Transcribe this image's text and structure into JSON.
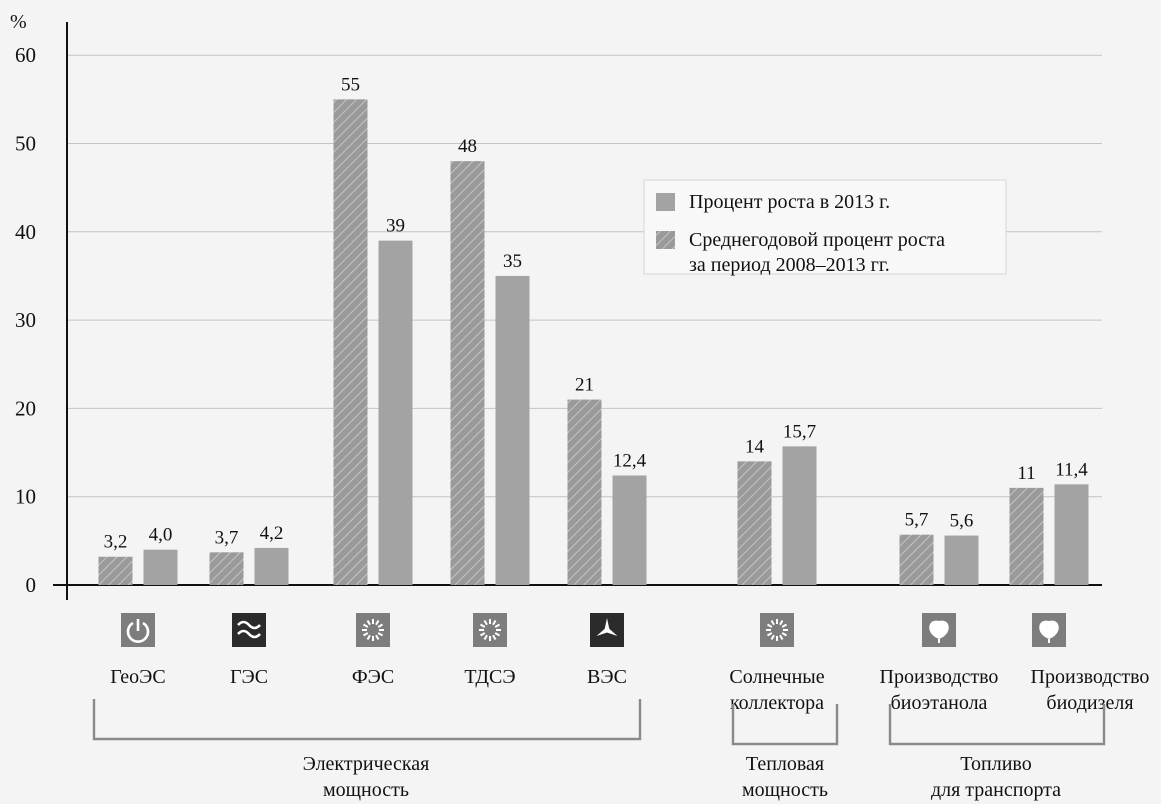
{
  "chart_data": {
    "type": "bar",
    "ylabel": "%",
    "ylim": [
      0,
      60
    ],
    "yticks": [
      "0",
      "10",
      "20",
      "30",
      "40",
      "50",
      "60"
    ],
    "categories": [
      "ГеоЭС",
      "ГЭС",
      "ФЭС",
      "ТДСЭ",
      "ВЭС",
      "Солнечные коллектора",
      "Производство биоэтанола",
      "Производство биодизеля"
    ],
    "series": [
      {
        "name": "Среднегодовой процент роста за период 2008–2013 гг.",
        "pattern": "hatched",
        "values": [
          3.2,
          3.7,
          55,
          48,
          21,
          14,
          5.7,
          11
        ],
        "labels": [
          "3,2",
          "3,7",
          "55",
          "48",
          "21",
          "14",
          "5,7",
          "11"
        ]
      },
      {
        "name": "Процент роста в 2013 г.",
        "pattern": "solid",
        "values": [
          4.0,
          4.2,
          39,
          35,
          12.4,
          15.7,
          5.6,
          11.4
        ],
        "labels": [
          "4,0",
          "4,2",
          "39",
          "35",
          "12,4",
          "15,7",
          "5,6",
          "11,4"
        ]
      }
    ],
    "category_labels": [
      [
        "ГеоЭС"
      ],
      [
        "ГЭС"
      ],
      [
        "ФЭС"
      ],
      [
        "ТДСЭ"
      ],
      [
        "ВЭС"
      ],
      [
        "Солнечные",
        "коллектора"
      ],
      [
        "Производство",
        "биоэтанола"
      ],
      [
        "Производство",
        "биодизеля"
      ]
    ],
    "icons": [
      "geothermal-icon",
      "water-waves-icon",
      "sun-icon",
      "sun-icon",
      "wind-turbine-icon",
      "sun-icon",
      "leaf-icon",
      "leaf-icon"
    ],
    "legend": {
      "placement": "top-right",
      "items": [
        {
          "series": 1,
          "lines": [
            "Процент роста в 2013 г."
          ]
        },
        {
          "series": 0,
          "lines": [
            "Среднегодовой процент роста",
            "за период 2008–2013 гг."
          ]
        }
      ]
    },
    "groups": [
      {
        "lines": [
          "Электрическая",
          "мощность"
        ],
        "from": 0,
        "to": 4
      },
      {
        "lines": [
          "Тепловая",
          "мощность"
        ],
        "from": 5,
        "to": 5
      },
      {
        "lines": [
          "Топливо",
          "для транспорта"
        ],
        "from": 6,
        "to": 7
      }
    ],
    "grid": true,
    "colors": {
      "bar": "#a3a3a3",
      "bar_hatched": "#9a9a9a",
      "hatch": "#cfcfcf",
      "grid": "#c4c4c4",
      "axis": "#111111",
      "icon_bg": "#7d7d7d",
      "icon_dark": "#2b2b2b",
      "bracket": "#8a8a8a"
    }
  }
}
